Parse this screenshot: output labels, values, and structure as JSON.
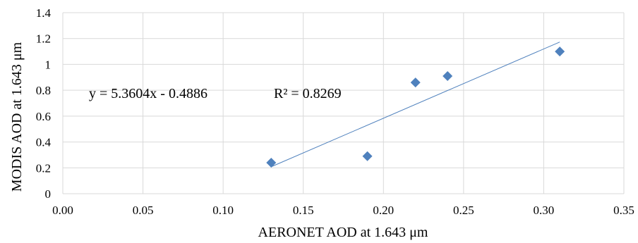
{
  "chart_data": {
    "type": "scatter",
    "xlabel": "AERONET AOD at 1.643 μm",
    "ylabel": "MODIS AOD at 1.643 μm",
    "xlim": [
      0,
      0.35
    ],
    "ylim": [
      0,
      1.4
    ],
    "x_ticks": [
      "0.00",
      "0.05",
      "0.10",
      "0.15",
      "0.20",
      "0.25",
      "0.30",
      "0.35"
    ],
    "y_ticks": [
      "0",
      "0.2",
      "0.4",
      "0.6",
      "0.8",
      "1",
      "1.2",
      "1.4"
    ],
    "grid": true,
    "series": [
      {
        "points": [
          {
            "x": 0.13,
            "y": 0.24
          },
          {
            "x": 0.19,
            "y": 0.29
          },
          {
            "x": 0.22,
            "y": 0.86
          },
          {
            "x": 0.24,
            "y": 0.91
          },
          {
            "x": 0.31,
            "y": 1.1
          }
        ],
        "color": "#4f81bd"
      }
    ],
    "trendline": {
      "slope": 5.3604,
      "intercept": -0.4886,
      "x_range": [
        0.13,
        0.31
      ],
      "color": "#4f81bd"
    },
    "annotations": {
      "equation": "y = 5.3604x - 0.4886",
      "r_squared": "R² = 0.8269"
    }
  }
}
